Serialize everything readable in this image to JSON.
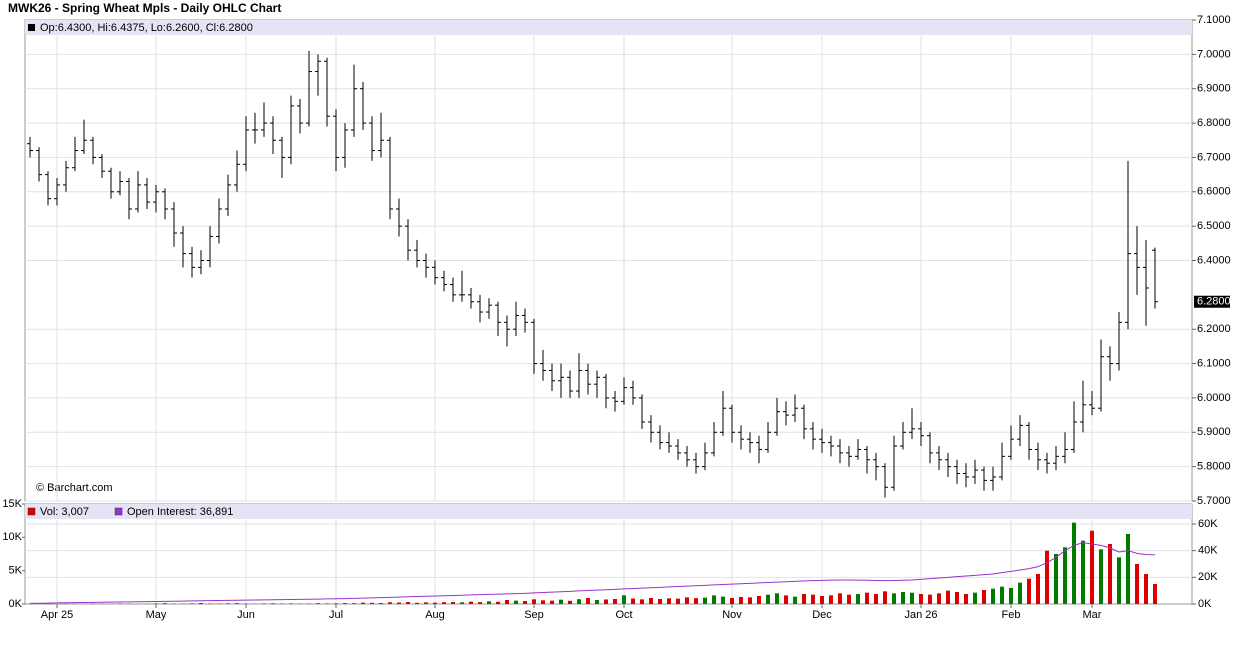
{
  "chart_data": [
    {
      "type": "ohlc",
      "title": "MWK26 - Spring Wheat Mpls - Daily OHLC Chart",
      "legend": "Op:6.4300, Hi:6.4375, Lo:6.2600, Cl:6.2800",
      "credit": "© Barchart.com",
      "last_label": "6.2800",
      "color": "#000000",
      "grid": true,
      "ylim": [
        5.7,
        7.1
      ],
      "yticks": [
        {
          "value": 7.1,
          "label": "7.1000"
        },
        {
          "value": 7.0,
          "label": "7.0000"
        },
        {
          "value": 6.9,
          "label": "6.9000"
        },
        {
          "value": 6.8,
          "label": "6.8000"
        },
        {
          "value": 6.7,
          "label": "6.7000"
        },
        {
          "value": 6.6,
          "label": "6.6000"
        },
        {
          "value": 6.5,
          "label": "6.5000"
        },
        {
          "value": 6.4,
          "label": "6.4000"
        },
        {
          "value": 6.2,
          "label": "6.2000"
        },
        {
          "value": 6.1,
          "label": "6.1000"
        },
        {
          "value": 6.0,
          "label": "6.0000"
        },
        {
          "value": 5.9,
          "label": "5.9000"
        },
        {
          "value": 5.8,
          "label": "5.8000"
        },
        {
          "value": 5.7,
          "label": "5.7000"
        }
      ],
      "open": [
        6.74,
        6.72,
        6.65,
        6.58,
        6.62,
        6.67,
        6.72,
        6.75,
        6.7,
        6.66,
        6.6,
        6.63,
        6.55,
        6.62,
        6.57,
        6.6,
        6.55,
        6.48,
        6.42,
        6.38,
        6.4,
        6.47,
        6.55,
        6.62,
        6.68,
        6.78,
        6.78,
        6.8,
        6.75,
        6.7,
        6.85,
        6.8,
        6.95,
        6.98,
        6.82,
        6.7,
        6.78,
        6.9,
        6.8,
        6.72,
        6.75,
        6.55,
        6.5,
        6.43,
        6.4,
        6.38,
        6.35,
        6.33,
        6.3,
        6.3,
        6.28,
        6.25,
        6.27,
        6.22,
        6.2,
        6.24,
        6.22,
        6.1,
        6.08,
        6.05,
        6.06,
        6.02,
        6.08,
        6.04,
        6.06,
        6.0,
        5.99,
        6.03,
        6.0,
        5.93,
        5.9,
        5.87,
        5.86,
        5.84,
        5.82,
        5.8,
        5.84,
        5.9,
        5.97,
        5.9,
        5.88,
        5.87,
        5.85,
        5.9,
        5.96,
        5.95,
        5.97,
        5.91,
        5.88,
        5.87,
        5.86,
        5.84,
        5.83,
        5.85,
        5.82,
        5.8,
        5.74,
        5.86,
        5.9,
        5.91,
        5.89,
        5.84,
        5.82,
        5.8,
        5.78,
        5.77,
        5.79,
        5.76,
        5.77,
        5.83,
        5.88,
        5.92,
        5.85,
        5.82,
        5.81,
        5.83,
        5.85,
        5.93,
        5.98,
        5.97,
        6.12,
        6.1,
        6.22,
        6.42,
        6.38,
        6.43
      ],
      "high": [
        6.76,
        6.73,
        6.66,
        6.64,
        6.69,
        6.76,
        6.81,
        6.76,
        6.71,
        6.67,
        6.66,
        6.64,
        6.66,
        6.64,
        6.62,
        6.61,
        6.57,
        6.5,
        6.44,
        6.43,
        6.5,
        6.58,
        6.65,
        6.72,
        6.82,
        6.83,
        6.86,
        6.82,
        6.76,
        6.88,
        6.87,
        7.01,
        7.0,
        6.99,
        6.84,
        6.8,
        6.97,
        6.92,
        6.82,
        6.83,
        6.76,
        6.58,
        6.52,
        6.46,
        6.42,
        6.4,
        6.37,
        6.35,
        6.37,
        6.32,
        6.3,
        6.29,
        6.28,
        6.24,
        6.28,
        6.26,
        6.23,
        6.14,
        6.1,
        6.1,
        6.08,
        6.13,
        6.1,
        6.08,
        6.07,
        6.02,
        6.06,
        6.05,
        6.01,
        5.95,
        5.92,
        5.9,
        5.88,
        5.86,
        5.84,
        5.87,
        5.93,
        6.02,
        5.98,
        5.92,
        5.9,
        5.89,
        5.93,
        6.0,
        5.99,
        6.01,
        5.98,
        5.93,
        5.91,
        5.89,
        5.88,
        5.86,
        5.88,
        5.86,
        5.84,
        5.81,
        5.89,
        5.93,
        5.97,
        5.93,
        5.9,
        5.86,
        5.84,
        5.82,
        5.81,
        5.82,
        5.8,
        5.8,
        5.87,
        5.92,
        5.95,
        5.93,
        5.87,
        5.84,
        5.86,
        5.9,
        5.99,
        6.05,
        6.02,
        6.17,
        6.15,
        6.25,
        6.69,
        6.5,
        6.46,
        6.4375
      ],
      "low": [
        6.7,
        6.63,
        6.56,
        6.56,
        6.6,
        6.66,
        6.71,
        6.68,
        6.64,
        6.58,
        6.59,
        6.52,
        6.54,
        6.55,
        6.54,
        6.52,
        6.44,
        6.38,
        6.35,
        6.36,
        6.38,
        6.45,
        6.53,
        6.6,
        6.66,
        6.74,
        6.76,
        6.71,
        6.64,
        6.68,
        6.77,
        6.79,
        6.88,
        6.79,
        6.66,
        6.67,
        6.76,
        6.78,
        6.69,
        6.7,
        6.52,
        6.47,
        6.4,
        6.38,
        6.35,
        6.33,
        6.31,
        6.28,
        6.28,
        6.26,
        6.22,
        6.23,
        6.18,
        6.15,
        6.18,
        6.19,
        6.07,
        6.05,
        6.02,
        6.0,
        6.0,
        6.0,
        6.01,
        6.0,
        5.97,
        5.96,
        5.98,
        5.98,
        5.91,
        5.87,
        5.85,
        5.84,
        5.82,
        5.8,
        5.78,
        5.79,
        5.83,
        5.89,
        5.87,
        5.85,
        5.84,
        5.81,
        5.84,
        5.89,
        5.92,
        5.93,
        5.88,
        5.85,
        5.84,
        5.83,
        5.81,
        5.8,
        5.82,
        5.78,
        5.76,
        5.71,
        5.73,
        5.85,
        5.88,
        5.86,
        5.81,
        5.79,
        5.77,
        5.75,
        5.74,
        5.75,
        5.73,
        5.73,
        5.76,
        5.82,
        5.86,
        5.82,
        5.79,
        5.78,
        5.79,
        5.81,
        5.84,
        5.9,
        5.95,
        5.96,
        6.05,
        6.08,
        6.2,
        6.3,
        6.21,
        6.26
      ],
      "close": [
        6.72,
        6.65,
        6.58,
        6.62,
        6.67,
        6.72,
        6.75,
        6.7,
        6.66,
        6.6,
        6.63,
        6.55,
        6.62,
        6.57,
        6.6,
        6.55,
        6.48,
        6.42,
        6.38,
        6.4,
        6.47,
        6.55,
        6.62,
        6.68,
        6.78,
        6.78,
        6.8,
        6.75,
        6.7,
        6.85,
        6.8,
        6.95,
        6.98,
        6.82,
        6.7,
        6.78,
        6.9,
        6.8,
        6.72,
        6.75,
        6.55,
        6.5,
        6.43,
        6.4,
        6.38,
        6.35,
        6.33,
        6.3,
        6.3,
        6.28,
        6.25,
        6.27,
        6.22,
        6.2,
        6.24,
        6.22,
        6.1,
        6.08,
        6.05,
        6.06,
        6.02,
        6.08,
        6.04,
        6.06,
        6.0,
        5.99,
        6.03,
        6.0,
        5.93,
        5.9,
        5.87,
        5.86,
        5.84,
        5.82,
        5.8,
        5.84,
        5.9,
        5.97,
        5.9,
        5.88,
        5.87,
        5.85,
        5.9,
        5.96,
        5.95,
        5.97,
        5.91,
        5.88,
        5.87,
        5.86,
        5.84,
        5.83,
        5.85,
        5.82,
        5.8,
        5.74,
        5.86,
        5.9,
        5.91,
        5.89,
        5.84,
        5.82,
        5.8,
        5.78,
        5.77,
        5.79,
        5.76,
        5.77,
        5.83,
        5.88,
        5.92,
        5.85,
        5.82,
        5.81,
        5.83,
        5.85,
        5.93,
        5.98,
        5.97,
        6.12,
        6.1,
        6.22,
        6.42,
        6.38,
        6.32,
        6.28
      ]
    },
    {
      "type": "bar",
      "categories": [
        null,
        null,
        null,
        "Apr 25",
        null,
        null,
        null,
        null,
        null,
        null,
        null,
        null,
        null,
        null,
        "May",
        null,
        null,
        null,
        null,
        null,
        null,
        null,
        null,
        null,
        "Jun",
        null,
        null,
        null,
        null,
        null,
        null,
        null,
        null,
        null,
        "Jul",
        null,
        null,
        null,
        null,
        null,
        null,
        null,
        null,
        null,
        null,
        "Aug",
        null,
        null,
        null,
        null,
        null,
        null,
        null,
        null,
        null,
        null,
        "Sep",
        null,
        null,
        null,
        null,
        null,
        null,
        null,
        null,
        null,
        "Oct",
        null,
        null,
        null,
        null,
        null,
        null,
        null,
        null,
        null,
        null,
        null,
        "Nov",
        null,
        null,
        null,
        null,
        null,
        null,
        null,
        null,
        null,
        "Dec",
        null,
        null,
        null,
        null,
        null,
        null,
        null,
        null,
        null,
        null,
        "Jan 26",
        null,
        null,
        null,
        null,
        null,
        null,
        null,
        null,
        null,
        "Feb",
        null,
        null,
        null,
        null,
        null,
        null,
        null,
        null,
        "Mar",
        null,
        null,
        null,
        null,
        null,
        null,
        null
      ],
      "ylim": [
        0,
        15000
      ],
      "yticks": [
        {
          "value": 15000,
          "label": "15K"
        },
        {
          "value": 10000,
          "label": "10K"
        },
        {
          "value": 5000,
          "label": "5K"
        },
        {
          "value": 0,
          "label": "0K"
        }
      ],
      "y2lim": [
        0,
        75000
      ],
      "y2ticks": [
        {
          "value": 60000,
          "label": "60K"
        },
        {
          "value": 40000,
          "label": "40K"
        },
        {
          "value": 20000,
          "label": "20K"
        },
        {
          "value": 0,
          "label": "0K"
        }
      ],
      "series": [
        {
          "name": "Vol: 3,007",
          "color": "#dd0000",
          "up_color": "#007a00",
          "values": [
            20,
            10,
            30,
            0,
            40,
            20,
            10,
            50,
            30,
            20,
            60,
            40,
            10,
            30,
            80,
            120,
            60,
            40,
            90,
            150,
            70,
            50,
            100,
            130,
            60,
            40,
            80,
            110,
            60,
            90,
            50,
            70,
            120,
            80,
            100,
            140,
            120,
            200,
            180,
            150,
            260,
            220,
            300,
            180,
            240,
            200,
            280,
            300,
            250,
            350,
            280,
            400,
            320,
            600,
            500,
            450,
            700,
            550,
            500,
            650,
            480,
            720,
            900,
            600,
            680,
            750,
            1300,
            820,
            700,
            900,
            750,
            850,
            800,
            1000,
            880,
            950,
            1300,
            1100,
            900,
            1050,
            1000,
            1200,
            1400,
            1600,
            1300,
            1100,
            1500,
            1400,
            1200,
            1300,
            1600,
            1400,
            1500,
            1700,
            1500,
            1900,
            1600,
            1800,
            1700,
            1500,
            1400,
            1600,
            2000,
            1800,
            1500,
            1700,
            2100,
            2300,
            2600,
            2400,
            3200,
            3800,
            4500,
            8000,
            7500,
            8500,
            12200,
            9500,
            11000,
            8200,
            9000,
            7000,
            10500,
            6000,
            4500,
            3007
          ]
        },
        {
          "name": "Open Interest: 36,891",
          "color": "#9933cc",
          "axis": "y2",
          "values": [
            500,
            600,
            700,
            800,
            900,
            1000,
            1100,
            1200,
            1300,
            1400,
            1500,
            1600,
            1700,
            1800,
            1900,
            2000,
            2100,
            2200,
            2300,
            2400,
            2500,
            2600,
            2700,
            2800,
            2900,
            3000,
            3100,
            3200,
            3300,
            3400,
            3500,
            3600,
            3700,
            3800,
            3900,
            4000,
            4200,
            4400,
            4600,
            4800,
            5000,
            5200,
            5400,
            5600,
            5800,
            6000,
            6200,
            6400,
            6600,
            6800,
            7000,
            7200,
            7400,
            7600,
            7800,
            8000,
            8300,
            8600,
            8900,
            9200,
            9500,
            9800,
            10100,
            10400,
            10700,
            11000,
            11300,
            11600,
            11900,
            12200,
            12500,
            12800,
            13100,
            13400,
            13700,
            14000,
            14300,
            14600,
            14900,
            15200,
            15500,
            15800,
            16100,
            16400,
            16700,
            17000,
            17300,
            17500,
            17700,
            17900,
            18000,
            18000,
            17900,
            17800,
            17600,
            17500,
            17600,
            17800,
            18000,
            18500,
            19000,
            19500,
            20000,
            20500,
            21000,
            21500,
            22000,
            22500,
            23500,
            24500,
            25500,
            26500,
            28000,
            31000,
            35000,
            40000,
            44000,
            46000,
            45000,
            44000,
            42000,
            39000,
            40000,
            38000,
            37000,
            36891
          ]
        }
      ]
    }
  ]
}
